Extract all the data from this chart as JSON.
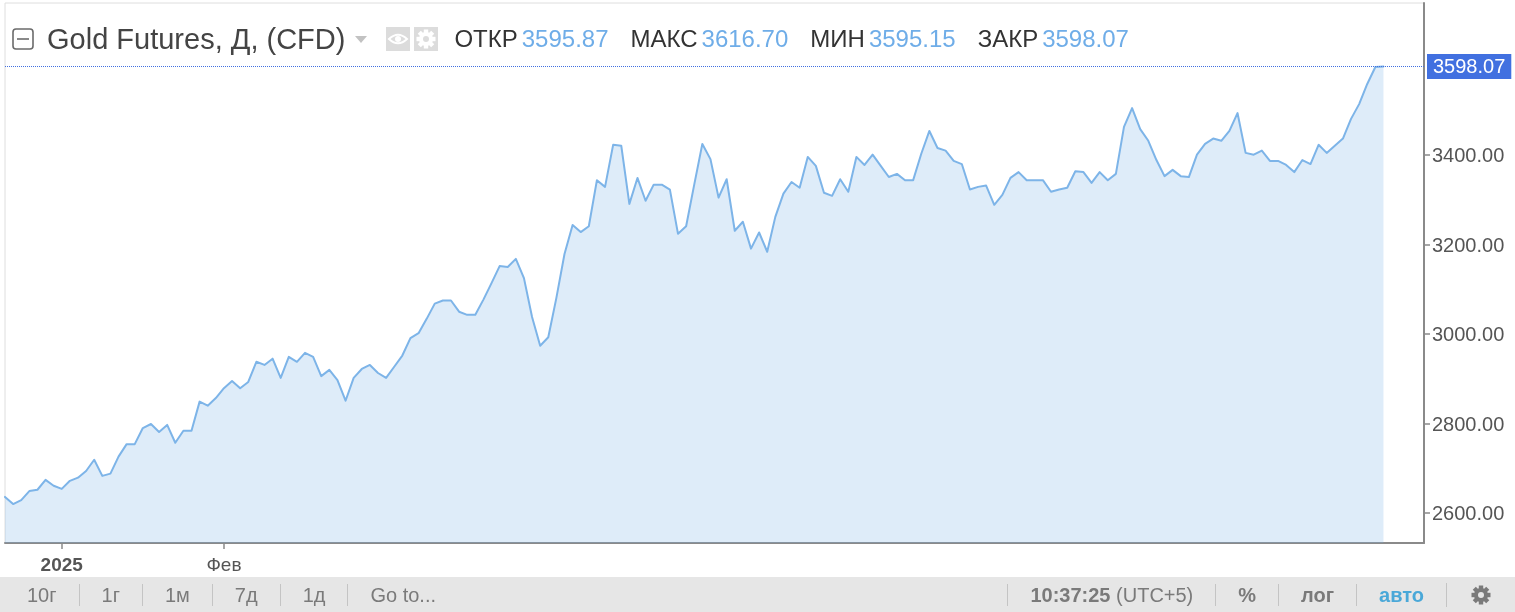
{
  "chart_data": {
    "type": "area",
    "title": "Gold Futures, Д, (CFD)",
    "categories": [
      null,
      null,
      null,
      null,
      null,
      null,
      null,
      "2025",
      null,
      null,
      null,
      null,
      null,
      null,
      null,
      null,
      null,
      null,
      null,
      null,
      null,
      null,
      null,
      null,
      null,
      null,
      null,
      "Фев",
      null,
      null,
      null,
      null,
      null,
      null,
      null,
      null,
      null,
      null,
      null,
      null,
      null,
      null,
      null,
      null,
      null,
      null,
      null,
      null,
      null,
      null,
      null,
      null,
      null,
      null,
      null,
      null,
      null,
      null,
      null,
      null,
      null,
      null,
      null,
      null,
      null,
      null,
      null,
      null,
      null,
      null,
      null,
      null,
      null,
      null,
      null,
      null,
      null,
      null,
      null,
      null,
      null,
      null,
      null,
      null,
      null,
      null,
      null,
      null,
      null,
      null,
      null,
      null,
      null,
      null,
      null,
      null,
      null,
      null,
      null,
      null,
      null,
      null,
      null,
      null,
      null,
      null,
      null,
      null,
      null,
      null,
      null,
      null,
      null,
      null,
      null,
      null,
      null,
      null,
      null,
      null,
      null,
      null,
      null,
      null,
      null,
      null,
      null,
      null,
      null,
      null,
      null,
      null,
      null,
      null,
      null,
      null,
      null,
      null,
      null,
      null,
      null,
      null,
      null,
      null,
      null,
      null,
      null,
      null,
      null,
      null,
      null,
      null,
      null,
      null,
      null,
      null,
      null,
      null,
      null,
      null,
      null,
      null,
      null,
      null,
      null,
      null,
      null,
      null,
      null,
      null,
      null,
      null,
      null,
      null,
      null,
      null
    ],
    "values": [
      2636,
      2620,
      2629,
      2649,
      2652,
      2674,
      2661,
      2654,
      2672,
      2679,
      2694,
      2719,
      2683,
      2688,
      2726,
      2754,
      2754,
      2790,
      2799,
      2781,
      2797,
      2757,
      2784,
      2784,
      2849,
      2840,
      2857,
      2879,
      2895,
      2879,
      2893,
      2938,
      2931,
      2945,
      2902,
      2949,
      2938,
      2958,
      2949,
      2906,
      2920,
      2897,
      2851,
      2902,
      2922,
      2931,
      2913,
      2902,
      2927,
      2952,
      2991,
      3002,
      3034,
      3068,
      3075,
      3075,
      3050,
      3043,
      3043,
      3077,
      3114,
      3152,
      3150,
      3168,
      3125,
      3038,
      2974,
      2993,
      3081,
      3179,
      3244,
      3228,
      3241,
      3344,
      3329,
      3423,
      3421,
      3291,
      3349,
      3298,
      3334,
      3334,
      3323,
      3224,
      3241,
      3334,
      3425,
      3391,
      3305,
      3346,
      3231,
      3251,
      3191,
      3227,
      3184,
      3262,
      3314,
      3340,
      3327,
      3396,
      3376,
      3316,
      3309,
      3346,
      3318,
      3396,
      3378,
      3401,
      3376,
      3351,
      3358,
      3344,
      3344,
      3403,
      3454,
      3416,
      3410,
      3387,
      3380,
      3323,
      3329,
      3332,
      3289,
      3311,
      3349,
      3362,
      3344,
      3344,
      3344,
      3318,
      3323,
      3327,
      3364,
      3362,
      3338,
      3362,
      3344,
      3358,
      3463,
      3505,
      3458,
      3432,
      3389,
      3353,
      3367,
      3353,
      3351,
      3401,
      3425,
      3437,
      3432,
      3454,
      3494,
      3405,
      3401,
      3410,
      3387,
      3387,
      3378,
      3362,
      3389,
      3380,
      3423,
      3405,
      3421,
      3437,
      3481,
      3514,
      3559,
      3597,
      3598,
      null,
      null,
      null,
      null,
      null
    ],
    "color": "#7db4e8",
    "marker": "none",
    "ylim": [
      2533,
      3740
    ],
    "yticks": [
      {
        "value": 2600,
        "label": "2600.00"
      },
      {
        "value": 2800,
        "label": "2800.00"
      },
      {
        "value": 3000,
        "label": "3000.00"
      },
      {
        "value": 3200,
        "label": "3200.00"
      },
      {
        "value": 3400,
        "label": "3400.00"
      }
    ],
    "ref_lines": [
      {
        "axis": "y",
        "value": 3598.07,
        "label": "3598.07",
        "color": "#4170e0",
        "line_style": "dotted"
      }
    ],
    "annotations": [
      "ОТКР 3595.87",
      "МАКС 3616.70",
      "МИН 3595.15",
      "ЗАКР 3598.07",
      "10г",
      "1г",
      "1м",
      "7д",
      "1д",
      "Go to...",
      "10:37:25 (UTC+5)",
      "%",
      "лог",
      "авто"
    ]
  }
}
